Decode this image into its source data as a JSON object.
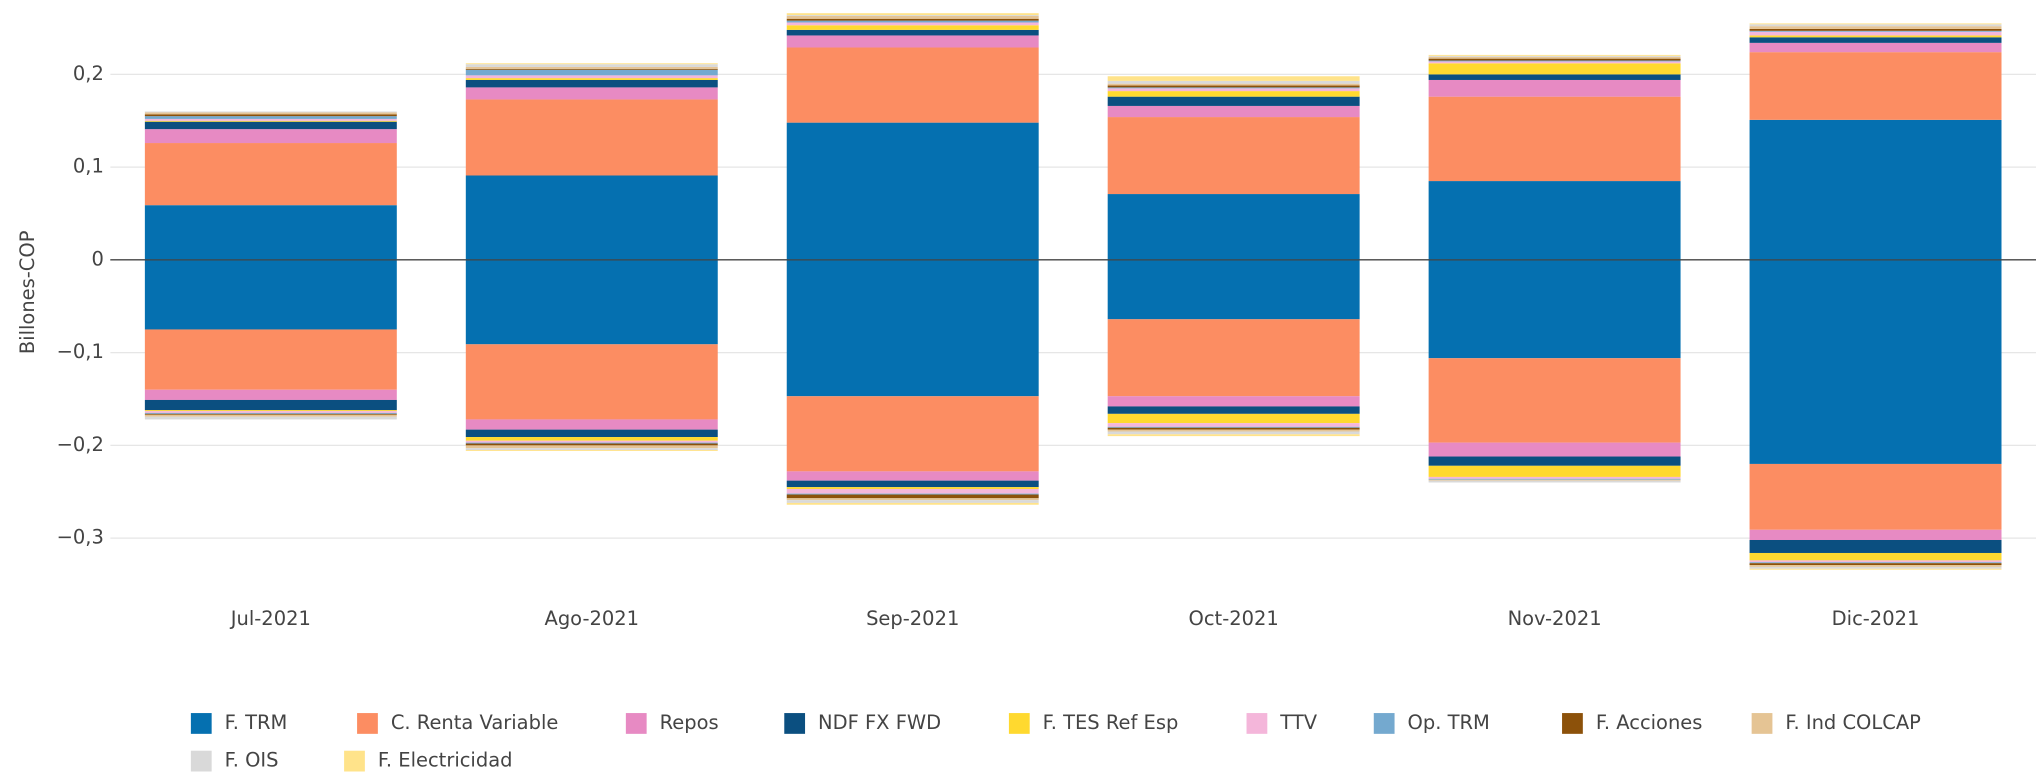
{
  "chart_data": {
    "type": "bar",
    "stacked": true,
    "y_label": "Billones-COP",
    "categories": [
      "Jul-2021",
      "Ago-2021",
      "Sep-2021",
      "Oct-2021",
      "Nov-2021",
      "Dic-2021"
    ],
    "ylim": [
      -0.343,
      0.28
    ],
    "yticks": [
      {
        "value": -0.3,
        "label": "−0,3"
      },
      {
        "value": -0.2,
        "label": "−0,2"
      },
      {
        "value": -0.1,
        "label": "−0,1"
      },
      0,
      {
        "value": 0.1,
        "label": "0,1"
      },
      {
        "value": 0.2,
        "label": "0,2"
      }
    ],
    "grid": true,
    "legend": "bottom",
    "series": [
      {
        "name": "F. TRM",
        "color": "#0570b0",
        "values": [
          0.059,
          0.091,
          0.148,
          0.071,
          0.085,
          0.151
        ],
        "values_negative": [
          -0.075,
          -0.091,
          -0.147,
          -0.064,
          -0.106,
          -0.22
        ]
      },
      {
        "name": "C. Renta Variable",
        "color": "#fc8d62",
        "values": [
          0.067,
          0.082,
          0.081,
          0.083,
          0.091,
          0.073
        ],
        "values_negative": [
          -0.065,
          -0.081,
          -0.081,
          -0.083,
          -0.091,
          -0.071
        ]
      },
      {
        "name": "Repos",
        "color": "#e78ac3",
        "values": [
          0.015,
          0.013,
          0.013,
          0.012,
          0.018,
          0.01
        ],
        "values_negative": [
          -0.011,
          -0.011,
          -0.01,
          -0.011,
          -0.015,
          -0.011
        ]
      },
      {
        "name": "NDF FX FWD",
        "color": "#0b4f80",
        "values": [
          0.008,
          0.008,
          0.006,
          0.01,
          0.006,
          0.006
        ],
        "values_negative": [
          -0.011,
          -0.008,
          -0.007,
          -0.008,
          -0.01,
          -0.014
        ]
      },
      {
        "name": "F. TES Ref Esp",
        "color": "#ffd92f",
        "values": [
          0.001,
          0.002,
          0.005,
          0.006,
          0.012,
          0.002
        ],
        "values_negative": [
          -0.001,
          -0.004,
          -0.002,
          -0.01,
          -0.012,
          -0.008
        ]
      },
      {
        "name": "TTV",
        "color": "#f4b6da",
        "values": [
          0.002,
          0.003,
          0.003,
          0.003,
          0.002,
          0.004
        ],
        "values_negative": [
          -0.002,
          -0.002,
          -0.005,
          -0.004,
          -0.002,
          -0.002
        ]
      },
      {
        "name": "Op. TRM",
        "color": "#74a9cf",
        "values": [
          0.003,
          0.006,
          0.002,
          0.001,
          0.001,
          0.001
        ],
        "values_negative": [
          -0.001,
          -0.001,
          -0.001,
          -0.001,
          -0.001,
          -0.001
        ]
      },
      {
        "name": "F. Acciones",
        "color": "#8c510a",
        "values": [
          0.002,
          0.001,
          0.002,
          0.002,
          0.002,
          0.002
        ],
        "values_negative": [
          -0.001,
          -0.002,
          -0.004,
          -0.002,
          0,
          -0.002
        ]
      },
      {
        "name": "F. Ind COLCAP",
        "color": "#e5c494",
        "values": [
          0.002,
          0.002,
          0.003,
          0.002,
          0.002,
          0.003
        ],
        "values_negative": [
          -0.002,
          -0.003,
          -0.002,
          -0.002,
          -0.001,
          -0.002
        ]
      },
      {
        "name": "F. OIS",
        "color": "#d9d9d9",
        "values": [
          0.001,
          0.003,
          0.001,
          0.003,
          0.001,
          0.002
        ],
        "values_negative": [
          -0.003,
          -0.002,
          -0.003,
          -0.003,
          -0.002,
          -0.002
        ]
      },
      {
        "name": "F. Electricidad",
        "color": "#ffe38a",
        "values": [
          0,
          0.001,
          0.002,
          0.005,
          0.001,
          0.001
        ],
        "values_negative": [
          0,
          -0.001,
          -0.002,
          -0.002,
          0,
          -0.001
        ]
      }
    ]
  }
}
